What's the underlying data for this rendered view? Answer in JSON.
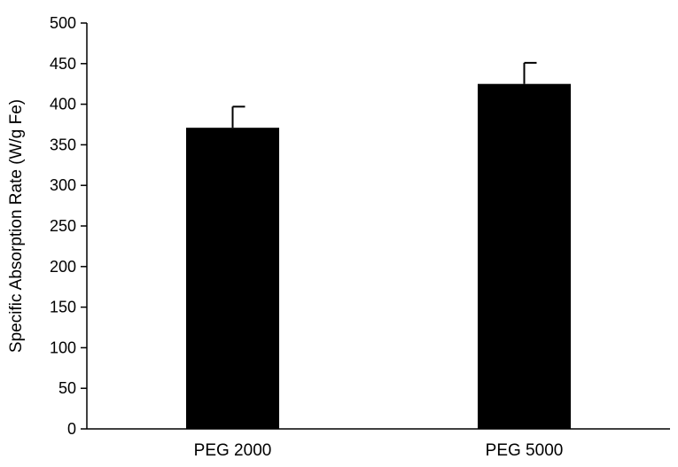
{
  "chart_data": {
    "type": "bar",
    "categories": [
      "PEG 2000",
      "PEG 5000"
    ],
    "values": [
      371,
      425
    ],
    "error_plus": [
      26,
      26
    ],
    "title": "",
    "xlabel": "",
    "ylabel": "Specific Absorption Rate (W/g Fe)",
    "ylim": [
      0,
      500
    ],
    "yticks": [
      "0",
      "50",
      "100",
      "150",
      "200",
      "250",
      "300",
      "350",
      "400",
      "450",
      "500"
    ],
    "grid": false,
    "legend": "none",
    "bar_color": "#000000",
    "axis_color": "#000000"
  }
}
